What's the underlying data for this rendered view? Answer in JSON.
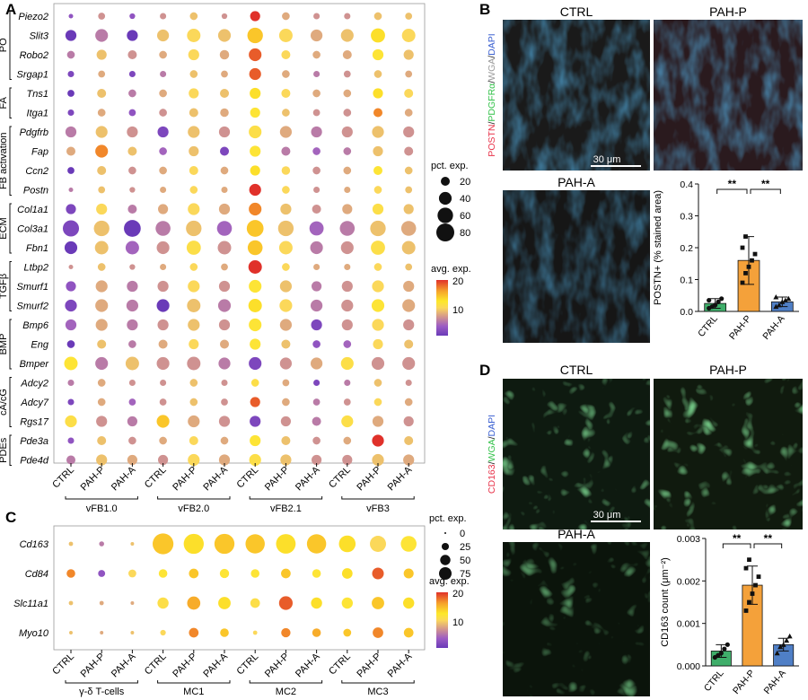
{
  "panel_letters": {
    "a": "A",
    "b": "B",
    "c": "C",
    "d": "D"
  },
  "colors": {
    "scale": [
      "#6a3ab8",
      "#9c5cc4",
      "#d69a8a",
      "#fbd85a",
      "#fde82a",
      "#f6a32a",
      "#e0312a"
    ],
    "ctrl_bar": "#3fae6a",
    "pahp_bar": "#f4a13a",
    "paha_bar": "#4f7fc6",
    "section_background": "#222222"
  },
  "micrographs": {
    "b_ctrl_label": "CTRL",
    "b_pahp_label": "PAH-P",
    "b_paha_label": "PAH-A",
    "b_stain": [
      "POSTN",
      "/",
      "PDGFRα",
      "/",
      "WGA",
      "/",
      "DAPI"
    ],
    "b_stain_colors": [
      "#e8334a",
      "#222",
      "#33c24a",
      "#222",
      "#999999",
      "#222",
      "#3a5fd0"
    ],
    "b_scale": "30 μm",
    "d_ctrl_label": "CTRL",
    "d_pahp_label": "PAH-P",
    "d_paha_label": "PAH-A",
    "d_stain": [
      "CD163",
      "/",
      "WGA",
      "/",
      "DAPI"
    ],
    "d_stain_colors": [
      "#e8334a",
      "#222",
      "#33c24a",
      "#222",
      "#3a5fd0"
    ],
    "d_scale": "30 μm"
  },
  "chart_data": [
    {
      "type": "dotplot",
      "panel": "A",
      "clusters": [
        "vFB1.0",
        "vFB2.0",
        "vFB2.1",
        "vFB3"
      ],
      "conditions": [
        "CTRL",
        "PAH-P",
        "PAH-A"
      ],
      "groups": [
        {
          "name": "PO",
          "genes": [
            "Piezo2",
            "Slit3",
            "Robo2",
            "Srgap1"
          ]
        },
        {
          "name": "FA",
          "genes": [
            "Tns1",
            "Itga1"
          ]
        },
        {
          "name": "FB activation",
          "genes": [
            "Pdgfrb",
            "Fap",
            "Ccn2",
            "Postn"
          ]
        },
        {
          "name": "ECM",
          "genes": [
            "Col1a1",
            "Col3a1",
            "Fbn1"
          ]
        },
        {
          "name": "TGFβ",
          "genes": [
            "Ltbp2",
            "Smurf1",
            "Smurf2"
          ]
        },
        {
          "name": "BMP",
          "genes": [
            "Bmp6",
            "Eng",
            "Bmper"
          ]
        },
        {
          "name": "cA/cG",
          "genes": [
            "Adcy2",
            "Adcy7",
            "Rgs17"
          ]
        },
        {
          "name": "PDEs",
          "genes": [
            "Pde3a",
            "Pde4d"
          ]
        }
      ],
      "pct_exp": [
        [
          5,
          12,
          8,
          10,
          15,
          8,
          25,
          15,
          10,
          10,
          15,
          12
        ],
        [
          30,
          40,
          30,
          35,
          45,
          40,
          60,
          45,
          35,
          40,
          50,
          45
        ],
        [
          15,
          25,
          20,
          15,
          30,
          22,
          40,
          20,
          15,
          20,
          30,
          25
        ],
        [
          10,
          12,
          10,
          10,
          15,
          12,
          35,
          15,
          10,
          12,
          15,
          12
        ],
        [
          12,
          20,
          15,
          15,
          25,
          20,
          30,
          20,
          15,
          15,
          25,
          20
        ],
        [
          10,
          15,
          12,
          15,
          20,
          18,
          25,
          15,
          12,
          15,
          20,
          15
        ],
        [
          30,
          35,
          30,
          30,
          35,
          30,
          40,
          35,
          30,
          30,
          35,
          30
        ],
        [
          20,
          40,
          20,
          15,
          25,
          20,
          30,
          20,
          15,
          15,
          25,
          20
        ],
        [
          12,
          20,
          15,
          15,
          20,
          15,
          25,
          18,
          15,
          15,
          20,
          15
        ],
        [
          5,
          12,
          8,
          10,
          15,
          10,
          35,
          15,
          10,
          10,
          15,
          12
        ],
        [
          25,
          30,
          20,
          25,
          35,
          30,
          40,
          30,
          20,
          25,
          30,
          25
        ],
        [
          65,
          60,
          70,
          55,
          60,
          55,
          70,
          60,
          50,
          55,
          60,
          55
        ],
        [
          40,
          45,
          45,
          40,
          50,
          45,
          55,
          45,
          40,
          40,
          50,
          45
        ],
        [
          5,
          15,
          8,
          10,
          15,
          12,
          45,
          15,
          10,
          10,
          15,
          12
        ],
        [
          25,
          35,
          30,
          30,
          35,
          30,
          40,
          35,
          25,
          30,
          35,
          30
        ],
        [
          35,
          40,
          35,
          40,
          45,
          40,
          45,
          40,
          35,
          35,
          40,
          40
        ],
        [
          30,
          35,
          30,
          30,
          35,
          30,
          40,
          35,
          30,
          30,
          35,
          30
        ],
        [
          15,
          20,
          15,
          20,
          25,
          20,
          30,
          20,
          15,
          15,
          25,
          20
        ],
        [
          45,
          40,
          45,
          40,
          45,
          35,
          40,
          35,
          35,
          40,
          40,
          40
        ],
        [
          10,
          15,
          10,
          10,
          15,
          10,
          15,
          12,
          10,
          10,
          15,
          10
        ],
        [
          10,
          15,
          12,
          12,
          15,
          12,
          25,
          15,
          12,
          12,
          15,
          15
        ],
        [
          35,
          30,
          25,
          40,
          35,
          30,
          30,
          25,
          20,
          35,
          30,
          25
        ],
        [
          10,
          20,
          15,
          15,
          20,
          15,
          30,
          20,
          15,
          15,
          35,
          20
        ],
        [
          20,
          30,
          25,
          25,
          35,
          30,
          35,
          30,
          25,
          25,
          35,
          30
        ]
      ],
      "avg_exp": [
        [
          6,
          9,
          6,
          9,
          11,
          9,
          20,
          10,
          9,
          9,
          11,
          11
        ],
        [
          4,
          8,
          4,
          11,
          12,
          11,
          16,
          12,
          10,
          11,
          15,
          12
        ],
        [
          8,
          11,
          9,
          10,
          12,
          10,
          19,
          12,
          10,
          10,
          14,
          11
        ],
        [
          5,
          10,
          5,
          8,
          11,
          10,
          19,
          10,
          8,
          9,
          11,
          10
        ],
        [
          4,
          11,
          8,
          10,
          12,
          11,
          15,
          12,
          10,
          10,
          15,
          12
        ],
        [
          5,
          10,
          6,
          9,
          11,
          10,
          14,
          11,
          9,
          9,
          18,
          10
        ],
        [
          8,
          11,
          9,
          5,
          11,
          9,
          13,
          10,
          8,
          9,
          11,
          9
        ],
        [
          10,
          18,
          11,
          7,
          11,
          5,
          14,
          8,
          7,
          8,
          11,
          9
        ],
        [
          4,
          11,
          9,
          10,
          12,
          10,
          15,
          12,
          9,
          10,
          14,
          11
        ],
        [
          8,
          11,
          9,
          10,
          12,
          10,
          20,
          12,
          9,
          10,
          12,
          11
        ],
        [
          5,
          12,
          8,
          10,
          12,
          10,
          18,
          11,
          9,
          10,
          13,
          11
        ],
        [
          5,
          11,
          4,
          8,
          11,
          7,
          16,
          11,
          7,
          8,
          11,
          10
        ],
        [
          4,
          11,
          7,
          9,
          13,
          9,
          16,
          12,
          8,
          9,
          13,
          11
        ],
        [
          9,
          11,
          9,
          10,
          12,
          10,
          20,
          12,
          10,
          10,
          12,
          11
        ],
        [
          6,
          10,
          8,
          9,
          12,
          9,
          14,
          11,
          8,
          9,
          12,
          10
        ],
        [
          5,
          10,
          8,
          4,
          11,
          8,
          15,
          12,
          8,
          9,
          14,
          10
        ],
        [
          7,
          10,
          8,
          9,
          11,
          9,
          14,
          10,
          5,
          9,
          12,
          9
        ],
        [
          4,
          11,
          8,
          10,
          12,
          10,
          14,
          11,
          6,
          7,
          12,
          11
        ],
        [
          14,
          8,
          11,
          9,
          9,
          8,
          5,
          9,
          10,
          13,
          9,
          9
        ],
        [
          8,
          10,
          9,
          9,
          11,
          9,
          13,
          10,
          5,
          8,
          11,
          9
        ],
        [
          5,
          10,
          7,
          9,
          11,
          9,
          19,
          10,
          8,
          9,
          12,
          10
        ],
        [
          13,
          9,
          8,
          16,
          10,
          9,
          5,
          9,
          8,
          13,
          10,
          9
        ],
        [
          6,
          11,
          9,
          10,
          12,
          10,
          14,
          11,
          9,
          10,
          20,
          11
        ],
        [
          8,
          11,
          10,
          9,
          12,
          10,
          13,
          11,
          9,
          9,
          11,
          10
        ]
      ],
      "size_legend": {
        "title": "pct. exp.",
        "values": [
          20,
          40,
          60,
          80
        ]
      },
      "color_legend": {
        "title": "avg. exp.",
        "ticks": [
          10,
          20
        ]
      }
    },
    {
      "type": "bar",
      "panel": "B",
      "categories": [
        "CTRL",
        "PAH-P",
        "PAH-A"
      ],
      "values": [
        0.025,
        0.16,
        0.03
      ],
      "errors": [
        0.015,
        0.075,
        0.015
      ],
      "points": [
        [
          0.01,
          0.015,
          0.02,
          0.03,
          0.04,
          0.035
        ],
        [
          0.09,
          0.12,
          0.14,
          0.16,
          0.18,
          0.2,
          0.235
        ],
        [
          0.015,
          0.02,
          0.03,
          0.035,
          0.04,
          0.045
        ]
      ],
      "ylabel": "POSTN+ (% stained area)",
      "ylim": [
        0,
        0.4
      ],
      "yticks": [
        "0.0",
        "0.1",
        "0.2",
        "0.3",
        "0.4"
      ],
      "significance": [
        "**",
        "**"
      ]
    },
    {
      "type": "dotplot",
      "panel": "C",
      "clusters": [
        "γ-δ T-cells",
        "MC1",
        "MC2",
        "MC3"
      ],
      "conditions": [
        "CTRL",
        "PAH-P",
        "PAH-A"
      ],
      "genes": [
        "Cd163",
        "Cd84",
        "Slc11a1",
        "Myo10"
      ],
      "pct_exp": [
        [
          3,
          4,
          2,
          70,
          65,
          65,
          60,
          62,
          60,
          45,
          42,
          40
        ],
        [
          12,
          8,
          10,
          12,
          15,
          14,
          12,
          15,
          12,
          18,
          22,
          16
        ],
        [
          3,
          3,
          2,
          20,
          28,
          25,
          15,
          30,
          20,
          20,
          25,
          20
        ],
        [
          2,
          2,
          2,
          5,
          15,
          12,
          3,
          14,
          12,
          10,
          18,
          15
        ]
      ],
      "avg_exp": [
        [
          11,
          8,
          11,
          16,
          15,
          16,
          16,
          15,
          16,
          15,
          12,
          14
        ],
        [
          18,
          6,
          12,
          14,
          16,
          14,
          14,
          16,
          14,
          15,
          19,
          16
        ],
        [
          11,
          10,
          10,
          13,
          17,
          15,
          13,
          19,
          15,
          14,
          16,
          15
        ],
        [
          11,
          10,
          11,
          12,
          18,
          16,
          12,
          18,
          17,
          16,
          18,
          16
        ]
      ],
      "size_legend": {
        "title": "pct. exp.",
        "values": [
          0,
          25,
          50,
          75
        ]
      },
      "color_legend": {
        "title": "avg. exp.",
        "ticks": [
          10,
          20
        ]
      }
    },
    {
      "type": "bar",
      "panel": "D",
      "categories": [
        "CTRL",
        "PAH-P",
        "PAH-A"
      ],
      "values": [
        0.00035,
        0.0019,
        0.0005
      ],
      "errors": [
        0.00015,
        0.00045,
        0.00015
      ],
      "points": [
        [
          0.0002,
          0.00025,
          0.0003,
          0.0004,
          0.0005
        ],
        [
          0.0013,
          0.0015,
          0.0017,
          0.0019,
          0.0021,
          0.0023,
          0.0025
        ],
        [
          0.0003,
          0.00045,
          0.0005,
          0.0006,
          0.0007
        ]
      ],
      "ylabel": "CD163 count (μm⁻²)",
      "ylim": [
        0,
        0.003
      ],
      "yticks": [
        "0.000",
        "0.001",
        "0.002",
        "0.003"
      ],
      "significance": [
        "**",
        "**"
      ]
    }
  ]
}
